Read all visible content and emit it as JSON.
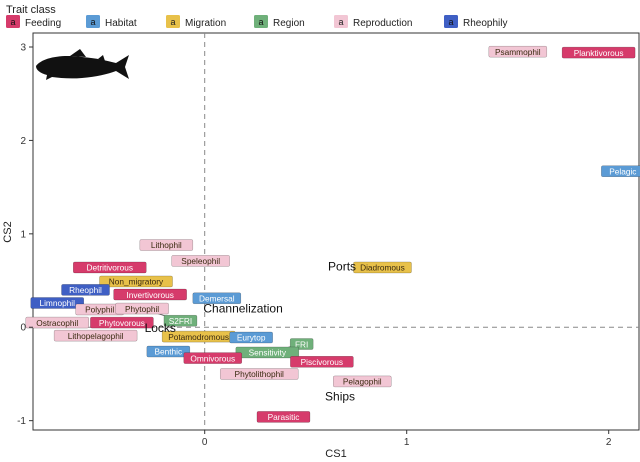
{
  "chart_data": {
    "type": "scatter",
    "xlabel": "CS1",
    "ylabel": "CS2",
    "xlim": [
      -0.85,
      2.15
    ],
    "ylim": [
      -1.1,
      3.15
    ],
    "x_ticks": [
      0,
      1,
      2
    ],
    "y_ticks": [
      -1,
      0,
      1,
      2,
      3
    ],
    "grid": false,
    "reference_lines": {
      "x": 0,
      "y": 0,
      "style": "dashed"
    },
    "legend": {
      "title": "Trait class",
      "placement": "top-left",
      "key_glyph": "a",
      "entries": [
        {
          "name": "Feeding",
          "color": "#d63b6b"
        },
        {
          "name": "Habitat",
          "color": "#5b9bd5"
        },
        {
          "name": "Migration",
          "color": "#e8c14a"
        },
        {
          "name": "Region",
          "color": "#6fb07a"
        },
        {
          "name": "Reproduction",
          "color": "#f2c6d4"
        },
        {
          "name": "Rheophily",
          "color": "#3f5fc4"
        }
      ]
    },
    "points": [
      {
        "label": "Psammophil",
        "class": "Reproduction",
        "x": 1.55,
        "y": 2.95
      },
      {
        "label": "Planktivorous",
        "class": "Feeding",
        "x": 1.95,
        "y": 2.94
      },
      {
        "label": "Pelagic",
        "class": "Habitat",
        "x": 2.07,
        "y": 1.67
      },
      {
        "label": "Lithophil",
        "class": "Reproduction",
        "x": -0.19,
        "y": 0.88
      },
      {
        "label": "Speleophil",
        "class": "Reproduction",
        "x": -0.02,
        "y": 0.71
      },
      {
        "label": "Diadromous",
        "class": "Migration",
        "x": 0.88,
        "y": 0.64
      },
      {
        "label": "Detritivorous",
        "class": "Feeding",
        "x": -0.47,
        "y": 0.64
      },
      {
        "label": "Non_migratory",
        "class": "Migration",
        "x": -0.34,
        "y": 0.49
      },
      {
        "label": "Rheophil",
        "class": "Rheophily",
        "x": -0.59,
        "y": 0.4
      },
      {
        "label": "Invertivorous",
        "class": "Feeding",
        "x": -0.27,
        "y": 0.35
      },
      {
        "label": "Limnophil",
        "class": "Rheophily",
        "x": -0.73,
        "y": 0.26
      },
      {
        "label": "Polyphil",
        "class": "Reproduction",
        "x": -0.52,
        "y": 0.19
      },
      {
        "label": "Phytophil",
        "class": "Reproduction",
        "x": -0.31,
        "y": 0.2
      },
      {
        "label": "Demersal",
        "class": "Habitat",
        "x": 0.06,
        "y": 0.31
      },
      {
        "label": "Ostracophil",
        "class": "Reproduction",
        "x": -0.73,
        "y": 0.05
      },
      {
        "label": "Phytovorous",
        "class": "Feeding",
        "x": -0.41,
        "y": 0.05
      },
      {
        "label": "S2FRI",
        "class": "Region",
        "x": -0.12,
        "y": 0.07
      },
      {
        "label": "Lithopelagophil",
        "class": "Reproduction",
        "x": -0.54,
        "y": -0.09
      },
      {
        "label": "Potamodromous",
        "class": "Migration",
        "x": -0.03,
        "y": -0.1
      },
      {
        "label": "Eurytop",
        "class": "Habitat",
        "x": 0.23,
        "y": -0.11
      },
      {
        "label": "FRI",
        "class": "Region",
        "x": 0.48,
        "y": -0.18
      },
      {
        "label": "Benthic",
        "class": "Habitat",
        "x": -0.18,
        "y": -0.26
      },
      {
        "label": "Sensitivity",
        "class": "Region",
        "x": 0.31,
        "y": -0.27
      },
      {
        "label": "Omnivorous",
        "class": "Feeding",
        "x": 0.04,
        "y": -0.33
      },
      {
        "label": "Piscivorous",
        "class": "Feeding",
        "x": 0.58,
        "y": -0.37
      },
      {
        "label": "Phytolithophil",
        "class": "Reproduction",
        "x": 0.27,
        "y": -0.5
      },
      {
        "label": "Pelagophil",
        "class": "Reproduction",
        "x": 0.78,
        "y": -0.58
      },
      {
        "label": "Parasitic",
        "class": "Feeding",
        "x": 0.39,
        "y": -0.96
      }
    ],
    "annotations": [
      {
        "text": "Ports",
        "x": 0.68,
        "y": 0.65
      },
      {
        "text": "Channelization",
        "x": 0.19,
        "y": 0.2
      },
      {
        "text": "Locks",
        "x": -0.22,
        "y": -0.01
      },
      {
        "text": "Ships",
        "x": 0.67,
        "y": -0.74
      }
    ],
    "connectors": [
      {
        "from": "Phytophil",
        "to": "S2FRI"
      },
      {
        "from": "Sensitivity",
        "to": "FRI"
      }
    ],
    "icon": "fish-silhouette-icon",
    "icon_color": "#111111"
  }
}
